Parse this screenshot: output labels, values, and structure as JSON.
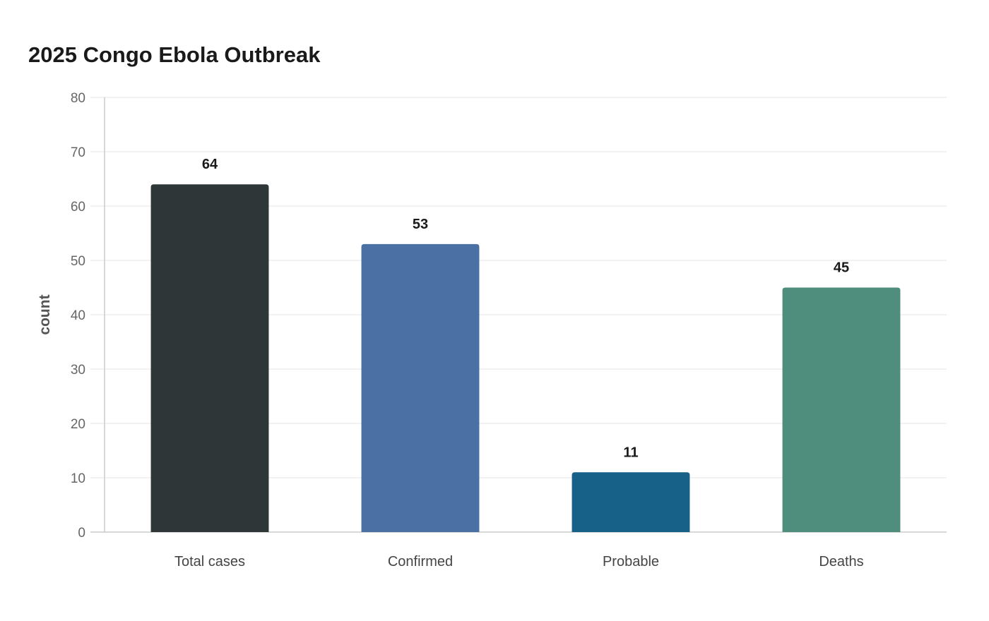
{
  "chart_data": {
    "type": "bar",
    "title": "2025 Congo Ebola Outbreak",
    "xlabel": "",
    "ylabel": "count",
    "categories": [
      "Total cases",
      "Confirmed",
      "Probable",
      "Deaths"
    ],
    "values": [
      64,
      53,
      11,
      45
    ],
    "data_labels": [
      "64",
      "53",
      "11",
      "45"
    ],
    "colors": [
      "#2e3637",
      "#4a70a4",
      "#176189",
      "#4f8d7c"
    ],
    "ylim": [
      0,
      80
    ],
    "yticks": [
      0,
      10,
      20,
      30,
      40,
      50,
      60,
      70,
      80
    ],
    "grid": true,
    "legend": "none"
  }
}
